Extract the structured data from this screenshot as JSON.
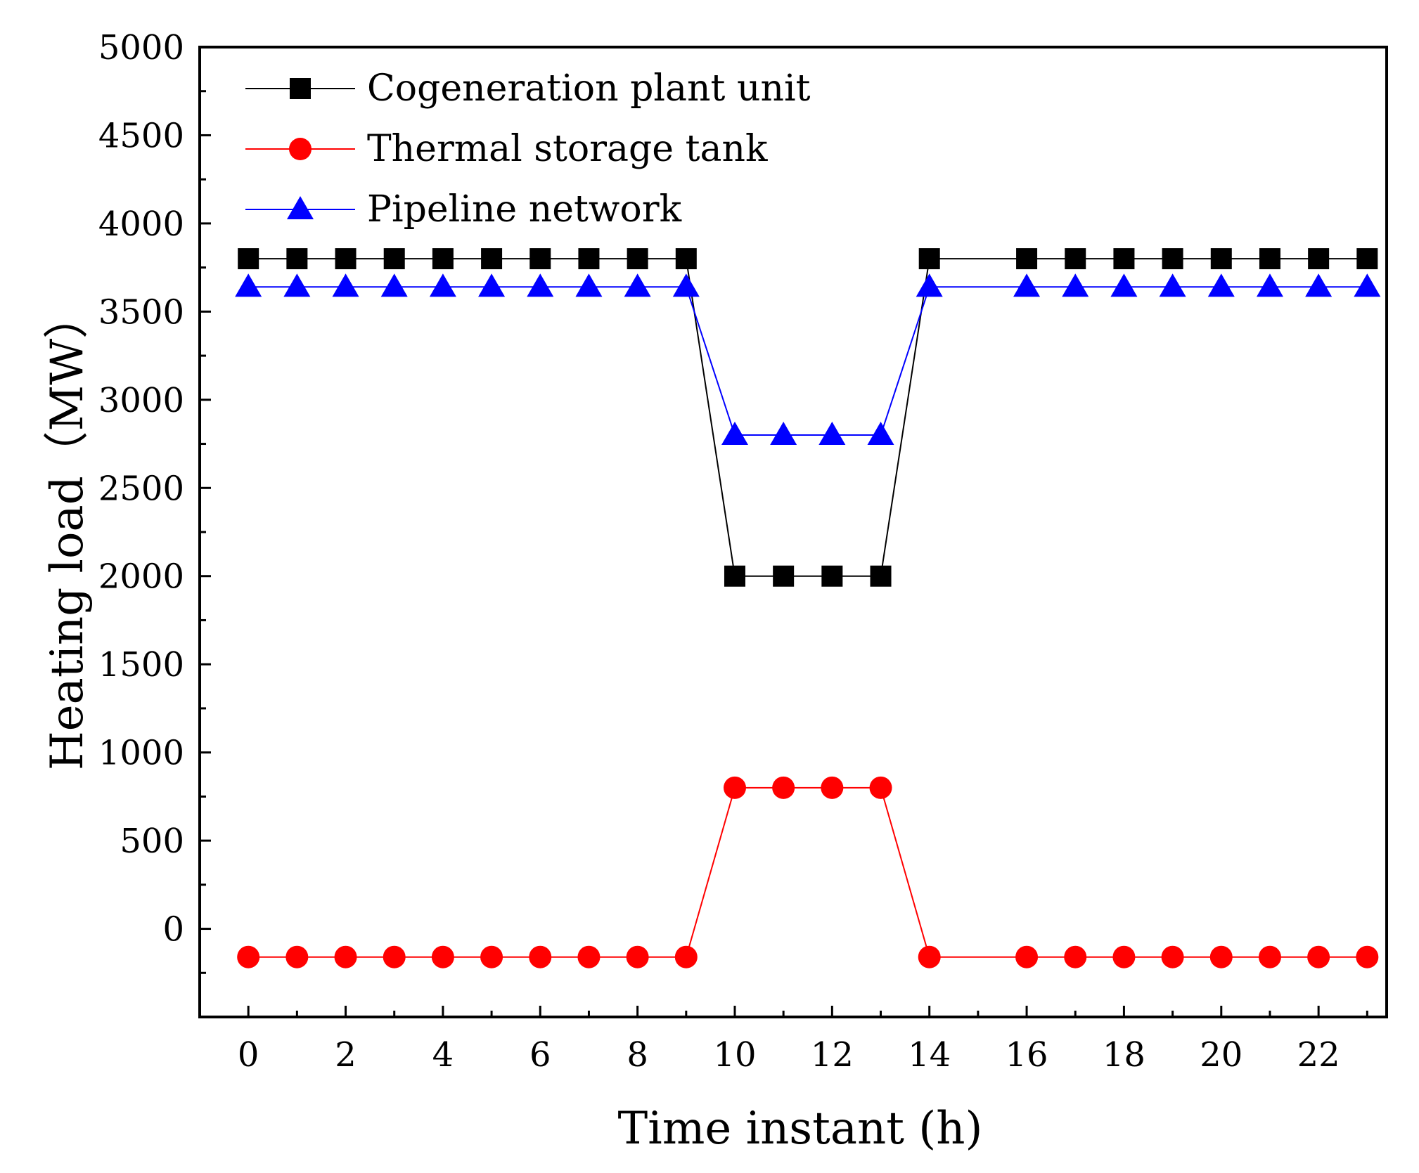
{
  "chart_data": {
    "type": "line",
    "title": "",
    "xlabel": "Time instant (h)",
    "ylabel": "Heating load（MW）",
    "xlim": [
      -1,
      23.4
    ],
    "ylim": [
      -500,
      5000
    ],
    "x_ticks": [
      0,
      2,
      4,
      6,
      8,
      10,
      12,
      14,
      16,
      18,
      20,
      22
    ],
    "x_tick_labels": [
      "0",
      "2",
      "4",
      "6",
      "8",
      "10",
      "12",
      "14",
      "16",
      "18",
      "20",
      "22"
    ],
    "y_ticks": [
      0,
      500,
      1000,
      1500,
      2000,
      2500,
      3000,
      3500,
      4000,
      4500,
      5000
    ],
    "y_tick_labels": [
      "0",
      "500",
      "1000",
      "1500",
      "2000",
      "2500",
      "3000",
      "3500",
      "4000",
      "4500",
      "5000"
    ],
    "legend_position": "top-left",
    "series": [
      {
        "name": "Cogeneration plant unit",
        "color": "#000000",
        "marker": "square",
        "x": [
          0,
          1,
          2,
          3,
          4,
          5,
          6,
          7,
          8,
          9,
          10,
          11,
          12,
          13,
          14,
          16,
          17,
          18,
          19,
          20,
          21,
          22,
          23
        ],
        "values": [
          3800,
          3800,
          3800,
          3800,
          3800,
          3800,
          3800,
          3800,
          3800,
          3800,
          2000,
          2000,
          2000,
          2000,
          3800,
          3800,
          3800,
          3800,
          3800,
          3800,
          3800,
          3800,
          3800
        ]
      },
      {
        "name": "Thermal storage tank",
        "color": "#ff0000",
        "marker": "circle",
        "x": [
          0,
          1,
          2,
          3,
          4,
          5,
          6,
          7,
          8,
          9,
          10,
          11,
          12,
          13,
          14,
          16,
          17,
          18,
          19,
          20,
          21,
          22,
          23
        ],
        "values": [
          -160,
          -160,
          -160,
          -160,
          -160,
          -160,
          -160,
          -160,
          -160,
          -160,
          800,
          800,
          800,
          800,
          -160,
          -160,
          -160,
          -160,
          -160,
          -160,
          -160,
          -160,
          -160
        ]
      },
      {
        "name": "Pipeline network",
        "color": "#0000ff",
        "marker": "triangle",
        "x": [
          0,
          1,
          2,
          3,
          4,
          5,
          6,
          7,
          8,
          9,
          10,
          11,
          12,
          13,
          14,
          16,
          17,
          18,
          19,
          20,
          21,
          22,
          23
        ],
        "values": [
          3640,
          3640,
          3640,
          3640,
          3640,
          3640,
          3640,
          3640,
          3640,
          3640,
          2800,
          2800,
          2800,
          2800,
          3640,
          3640,
          3640,
          3640,
          3640,
          3640,
          3640,
          3640,
          3640
        ]
      }
    ]
  }
}
